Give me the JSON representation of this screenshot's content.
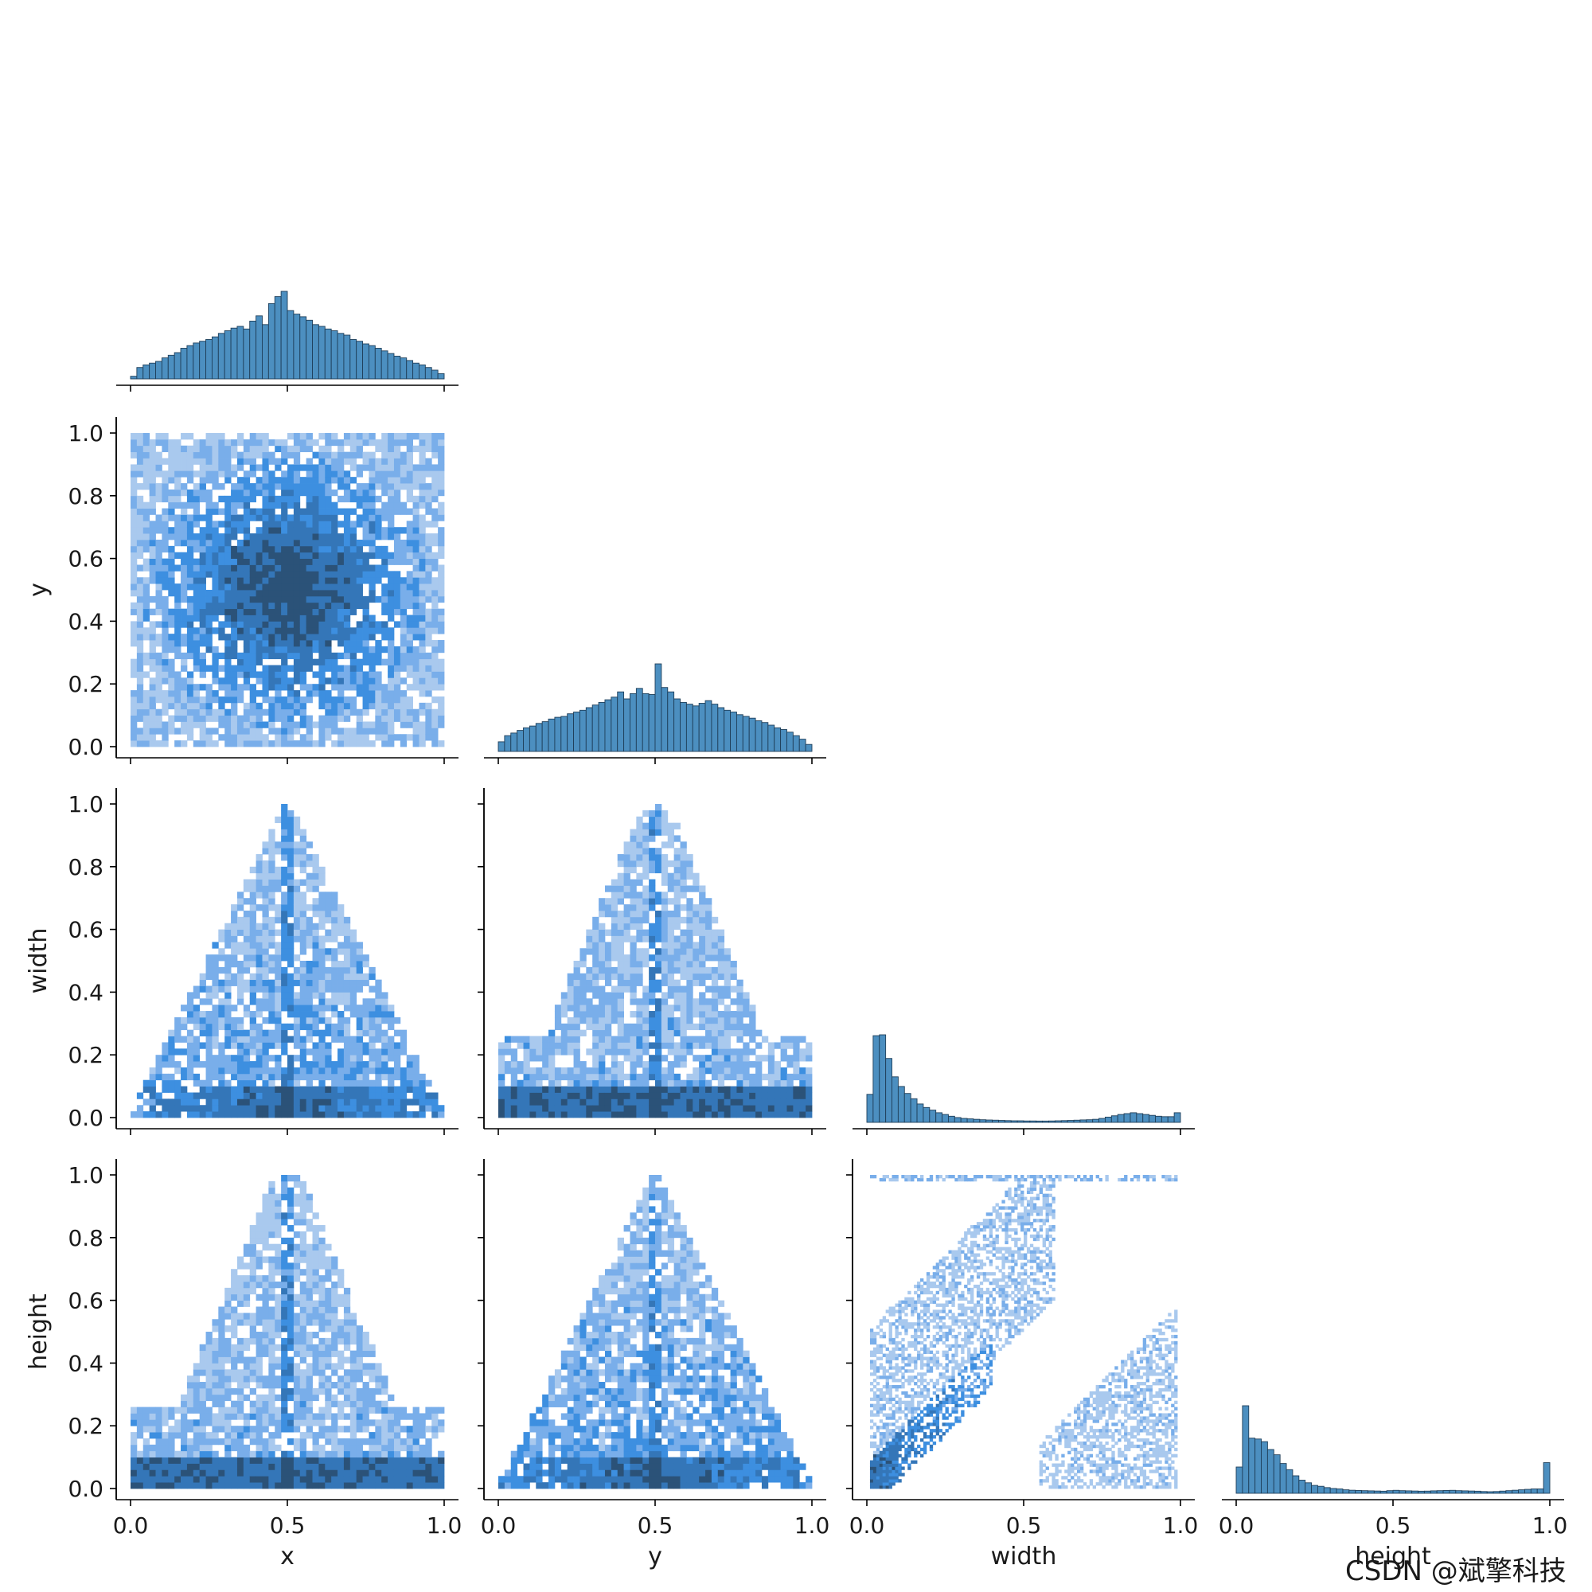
{
  "chart_data": {
    "type": "pairplot",
    "variables": [
      "x",
      "y",
      "width",
      "height"
    ],
    "corner": true,
    "diagonal": "histogram",
    "off_diagonal": "heatmap",
    "colors": {
      "hist_fill": "#4c8fc0",
      "hist_edge": "#1f3f5a",
      "cell_light": "#a9c9ee",
      "cell_mid": "#3d8fe0",
      "cell_dark": "#2b5278"
    },
    "tick_labels": [
      "0.0",
      "0.2",
      "0.4",
      "0.6",
      "0.8",
      "1.0"
    ],
    "x_tick_labels": [
      "0.0",
      "0.5",
      "1.0"
    ],
    "axis_range": [
      0,
      1
    ],
    "hist_bins": 50,
    "histograms": {
      "x": [
        0.03,
        0.13,
        0.16,
        0.18,
        0.2,
        0.24,
        0.27,
        0.3,
        0.35,
        0.38,
        0.41,
        0.43,
        0.45,
        0.48,
        0.52,
        0.55,
        0.58,
        0.6,
        0.57,
        0.66,
        0.72,
        0.62,
        0.86,
        0.94,
        1.0,
        0.78,
        0.74,
        0.71,
        0.67,
        0.62,
        0.6,
        0.57,
        0.55,
        0.52,
        0.5,
        0.45,
        0.43,
        0.4,
        0.38,
        0.35,
        0.32,
        0.29,
        0.26,
        0.24,
        0.21,
        0.18,
        0.16,
        0.13,
        0.1,
        0.06
      ],
      "y": [
        0.11,
        0.18,
        0.21,
        0.24,
        0.27,
        0.29,
        0.32,
        0.34,
        0.37,
        0.39,
        0.4,
        0.43,
        0.45,
        0.47,
        0.5,
        0.53,
        0.56,
        0.59,
        0.62,
        0.68,
        0.6,
        0.66,
        0.72,
        0.66,
        0.65,
        1.0,
        0.73,
        0.68,
        0.6,
        0.56,
        0.54,
        0.52,
        0.55,
        0.58,
        0.54,
        0.5,
        0.47,
        0.45,
        0.42,
        0.4,
        0.38,
        0.35,
        0.33,
        0.3,
        0.27,
        0.25,
        0.22,
        0.18,
        0.14,
        0.08
      ],
      "width": [
        0.32,
        0.99,
        1.0,
        0.73,
        0.52,
        0.41,
        0.33,
        0.27,
        0.21,
        0.17,
        0.14,
        0.11,
        0.09,
        0.07,
        0.055,
        0.045,
        0.04,
        0.035,
        0.03,
        0.027,
        0.025,
        0.022,
        0.02,
        0.018,
        0.018,
        0.016,
        0.016,
        0.015,
        0.015,
        0.016,
        0.018,
        0.02,
        0.022,
        0.025,
        0.028,
        0.03,
        0.035,
        0.045,
        0.06,
        0.075,
        0.09,
        0.1,
        0.11,
        0.1,
        0.09,
        0.08,
        0.07,
        0.065,
        0.065,
        0.11
      ],
      "height": [
        0.3,
        1.0,
        0.63,
        0.62,
        0.59,
        0.5,
        0.44,
        0.34,
        0.27,
        0.2,
        0.15,
        0.12,
        0.09,
        0.08,
        0.065,
        0.055,
        0.05,
        0.04,
        0.035,
        0.032,
        0.03,
        0.028,
        0.026,
        0.024,
        0.03,
        0.034,
        0.03,
        0.028,
        0.026,
        0.024,
        0.025,
        0.028,
        0.03,
        0.032,
        0.034,
        0.03,
        0.028,
        0.026,
        0.024,
        0.02,
        0.018,
        0.02,
        0.025,
        0.03,
        0.035,
        0.04,
        0.045,
        0.05,
        0.05,
        0.35
      ]
    },
    "joint_patterns": [
      {
        "x": "x",
        "y": "y",
        "shape": "square_centered",
        "description_peak": [
          0.5,
          0.5
        ]
      },
      {
        "x": "x",
        "y": "width",
        "shape": "triangle_apex_at_center"
      },
      {
        "x": "y",
        "y": "width",
        "shape": "spread_with_center_spine"
      },
      {
        "x": "x",
        "y": "height",
        "shape": "spread_with_center_spine"
      },
      {
        "x": "y",
        "y": "height",
        "shape": "triangle_apex_at_center"
      },
      {
        "x": "width",
        "y": "height",
        "shape": "diagonal_band_with_top_row"
      }
    ],
    "watermark": "CSDN @斌擎科技"
  }
}
